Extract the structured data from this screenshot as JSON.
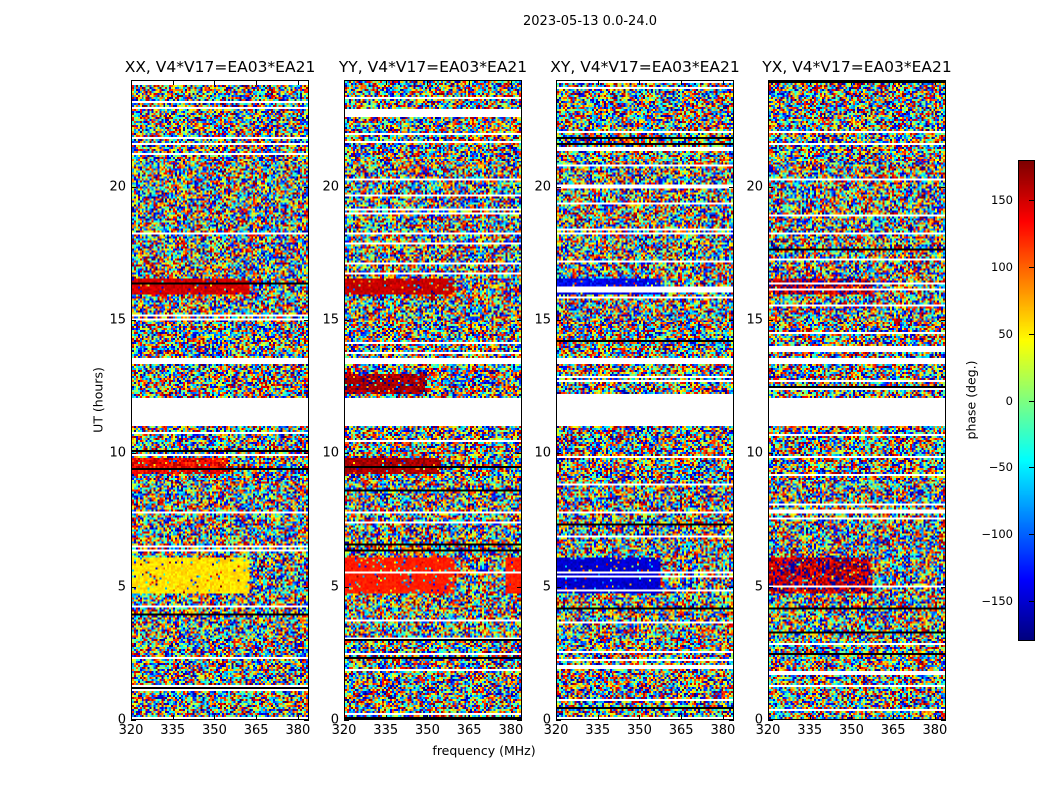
{
  "chart_data": {
    "type": "heatmap",
    "title": "2023-05-13 0.0-24.0",
    "xlabel": "frequency (MHz)",
    "ylabel": "UT (hours)",
    "xlim": [
      320,
      384
    ],
    "ylim": [
      0,
      24
    ],
    "xticks": [
      "320",
      "335",
      "350",
      "365",
      "380"
    ],
    "xtick_values": [
      320,
      335,
      350,
      365,
      380
    ],
    "yticks": [
      "0",
      "5",
      "10",
      "15",
      "20"
    ],
    "ytick_values": [
      0,
      5,
      10,
      15,
      20
    ],
    "colorbar": {
      "label": "phase (deg.)",
      "colormap": "jet",
      "range": [
        -180,
        180
      ],
      "ticks": [
        "150",
        "100",
        "50",
        "0",
        "−50",
        "−100",
        "−150"
      ],
      "tick_values": [
        150,
        100,
        50,
        0,
        -50,
        -100,
        -150
      ]
    },
    "blank_intervals_hours": [
      [
        11.0,
        12.1
      ],
      [
        13.35,
        13.6
      ],
      [
        7.7,
        7.8
      ],
      [
        18.2,
        18.3
      ],
      [
        8.3,
        8.35
      ],
      [
        4.55,
        4.6
      ]
    ],
    "panels": [
      {
        "title": "XX, V4*V17=EA03*EA21",
        "regions": [
          {
            "t": [
              4.75,
              6.1
            ],
            "f": [
              320,
              363
            ],
            "phase": 55,
            "spread": 25
          },
          {
            "t": [
              16.0,
              16.6
            ],
            "f": [
              320,
              363
            ],
            "phase": 150,
            "spread": 25
          },
          {
            "t": [
              9.2,
              9.8
            ],
            "f": [
              320,
              355
            ],
            "phase": 140,
            "spread": 60
          }
        ]
      },
      {
        "title": "YY, V4*V17=EA03*EA21",
        "regions": [
          {
            "t": [
              4.75,
              6.1
            ],
            "f": [
              320,
              360
            ],
            "phase": 125,
            "spread": 15
          },
          {
            "t": [
              4.75,
              6.1
            ],
            "f": [
              378,
              384
            ],
            "phase": 125,
            "spread": 15
          },
          {
            "t": [
              16.0,
              16.6
            ],
            "f": [
              320,
              360
            ],
            "phase": 155,
            "spread": 20
          },
          {
            "t": [
              12.2,
              13.0
            ],
            "f": [
              320,
              350
            ],
            "phase": 165,
            "spread": 40
          },
          {
            "t": [
              9.2,
              9.8
            ],
            "f": [
              320,
              355
            ],
            "phase": 165,
            "spread": 30
          }
        ]
      },
      {
        "title": "XY, V4*V17=EA03*EA21",
        "regions": [
          {
            "t": [
              4.75,
              6.1
            ],
            "f": [
              320,
              358
            ],
            "phase": -150,
            "spread": 25
          },
          {
            "t": [
              16.0,
              16.6
            ],
            "f": [
              320,
              358
            ],
            "phase": -140,
            "spread": 40
          }
        ]
      },
      {
        "title": "YX, V4*V17=EA03*EA21",
        "regions": [
          {
            "t": [
              4.75,
              6.1
            ],
            "f": [
              320,
              358
            ],
            "phase": 160,
            "spread": 90
          },
          {
            "t": [
              16.0,
              16.6
            ],
            "f": [
              320,
              358
            ],
            "phase": 160,
            "spread": 90
          }
        ]
      }
    ]
  }
}
